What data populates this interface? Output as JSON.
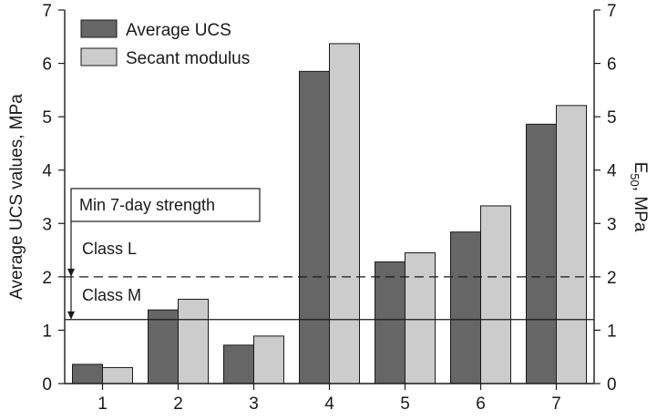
{
  "chart_data": {
    "type": "bar",
    "categories": [
      "1",
      "2",
      "3",
      "4",
      "5",
      "6",
      "7"
    ],
    "series": [
      {
        "name": "Average UCS",
        "values": [
          0.36,
          1.38,
          0.72,
          5.85,
          2.28,
          2.84,
          4.86
        ],
        "color": "#666666"
      },
      {
        "name": "Secant modulus",
        "values": [
          0.3,
          1.58,
          0.89,
          6.37,
          2.45,
          3.33,
          5.21
        ],
        "color": "#cccccc"
      }
    ],
    "ylabel": "Average UCS values, MPa",
    "y2label_main": "E",
    "y2label_sub": "50",
    "y2label_rest": ", MPa",
    "ylim": [
      0,
      7
    ],
    "y2lim": [
      0,
      7
    ],
    "yticks": [
      0,
      1,
      2,
      3,
      4,
      5,
      6,
      7
    ],
    "legend_position": "top-left",
    "grid": false,
    "reference_lines": [
      {
        "value": 2.0,
        "style": "dashed"
      },
      {
        "value": 1.2,
        "style": "solid"
      }
    ],
    "annotations": {
      "box_label": "Min 7-day strength",
      "class_l": "Class L",
      "class_m": "Class M"
    }
  }
}
